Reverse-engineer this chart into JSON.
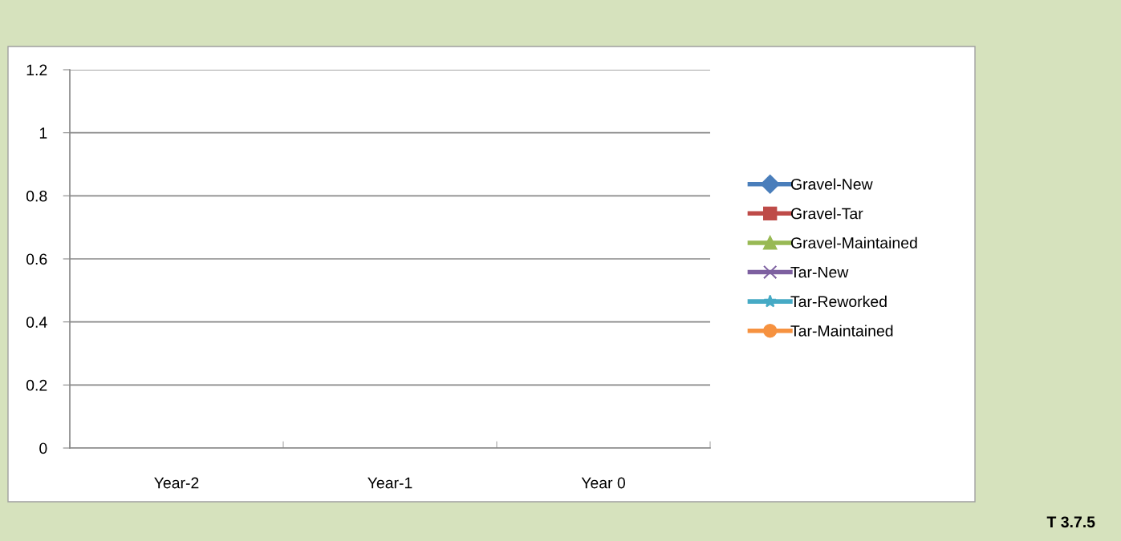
{
  "chart_data": {
    "type": "line",
    "categories": [
      "Year-2",
      "Year-1",
      "Year 0"
    ],
    "series": [
      {
        "name": "Gravel-New",
        "color": "#4a7ebb",
        "marker": "diamond",
        "values": [
          null,
          null,
          null
        ]
      },
      {
        "name": "Gravel-Tar",
        "color": "#be4b48",
        "marker": "square",
        "values": [
          null,
          null,
          null
        ]
      },
      {
        "name": "Gravel-Maintained",
        "color": "#98b954",
        "marker": "triangle",
        "values": [
          null,
          null,
          null
        ]
      },
      {
        "name": "Tar-New",
        "color": "#7d60a0",
        "marker": "cross",
        "values": [
          null,
          null,
          null
        ]
      },
      {
        "name": "Tar-Reworked",
        "color": "#46aac5",
        "marker": "star",
        "values": [
          null,
          null,
          null
        ]
      },
      {
        "name": "Tar-Maintained",
        "color": "#f69240",
        "marker": "circle",
        "values": [
          null,
          null,
          null
        ]
      }
    ],
    "ylim": [
      0,
      1.2
    ],
    "yticks": [
      0,
      0.2,
      0.4,
      0.6,
      0.8,
      1,
      1.2
    ],
    "grid": "y",
    "legend": "right",
    "annotations": [
      "T 3.7.5"
    ]
  }
}
